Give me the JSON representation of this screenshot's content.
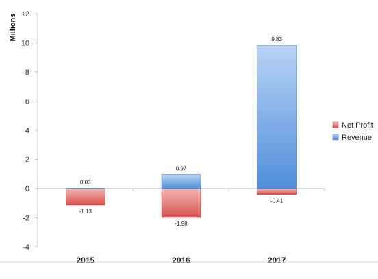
{
  "chart_data": {
    "type": "bar",
    "stacked": true,
    "categories": [
      "2015",
      "2016",
      "2017"
    ],
    "series": [
      {
        "name": "Net Profit",
        "values": [
          -1.13,
          -1.98,
          -0.41
        ],
        "color": "#d9534f"
      },
      {
        "name": "Revenue",
        "values": [
          0.03,
          0.97,
          9.83
        ],
        "color": "#4f8fd9"
      }
    ],
    "data_labels": {
      "Net Profit": [
        "-1.13",
        "-1.98",
        "-0.41"
      ],
      "Revenue": [
        "0.03",
        "0.97",
        "9.83"
      ]
    },
    "ylabel": "Millions",
    "ylim": [
      -4,
      12
    ],
    "yticks": [
      -4,
      -2,
      0,
      2,
      4,
      6,
      8,
      10,
      12
    ],
    "ytick_labels": [
      "-4",
      "-2",
      "0",
      "2",
      "4",
      "6",
      "8",
      "10",
      "12"
    ],
    "grid": false,
    "legend_position": "right"
  }
}
